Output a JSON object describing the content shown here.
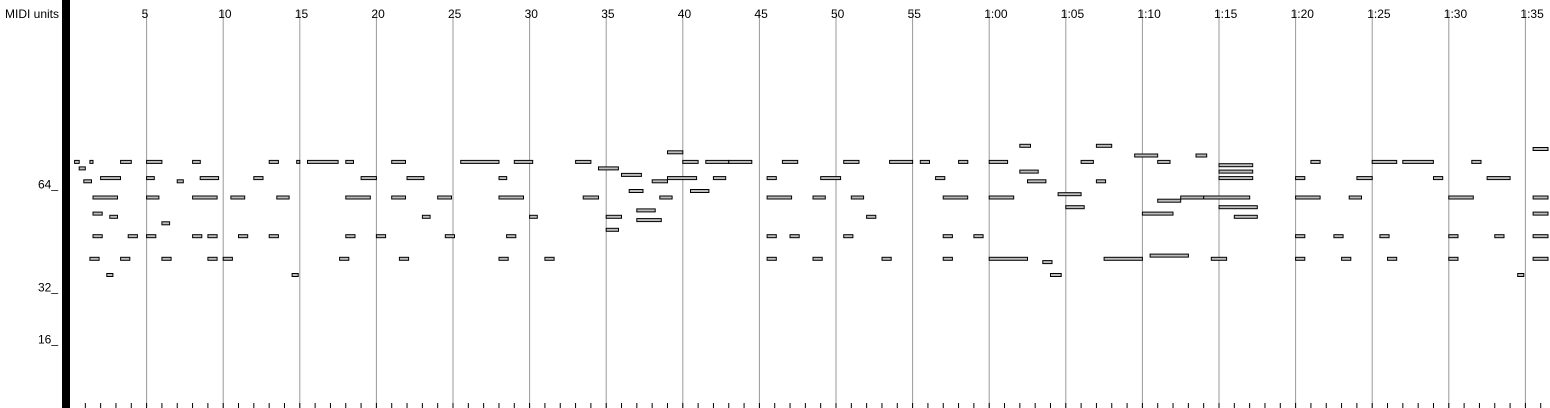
{
  "y_axis": {
    "unit_label": "MIDI units",
    "labels": [
      {
        "pitch": 64,
        "text": "64_"
      },
      {
        "pitch": 32,
        "text": "32_"
      },
      {
        "pitch": 16,
        "text": "16_"
      }
    ]
  },
  "x_axis": {
    "seconds_per_label": 5,
    "labels": [
      "5",
      "10",
      "15",
      "20",
      "25",
      "30",
      "35",
      "40",
      "45",
      "50",
      "55",
      "1:00",
      "1:05",
      "1:10",
      "1:15",
      "1:20",
      "1:25",
      "1:30",
      "1:35"
    ]
  },
  "chart_data": {
    "type": "scatter",
    "title": "",
    "xlabel": "",
    "ylabel": "MIDI units",
    "ylim": [
      0,
      128
    ],
    "xlim_seconds": [
      0,
      100
    ],
    "series": [
      {
        "values": [
          {
            "t": 0.3,
            "pitch": 72,
            "dur": 0.3
          },
          {
            "t": 0.6,
            "pitch": 70,
            "dur": 0.4
          },
          {
            "t": 0.9,
            "pitch": 66,
            "dur": 0.5
          },
          {
            "t": 1.3,
            "pitch": 72,
            "dur": 0.2
          },
          {
            "t": 1.5,
            "pitch": 61,
            "dur": 1.6
          },
          {
            "t": 1.5,
            "pitch": 56,
            "dur": 0.6
          },
          {
            "t": 1.5,
            "pitch": 49,
            "dur": 0.6
          },
          {
            "t": 1.3,
            "pitch": 42,
            "dur": 0.6
          },
          {
            "t": 2.0,
            "pitch": 67,
            "dur": 1.3
          },
          {
            "t": 2.6,
            "pitch": 55,
            "dur": 0.5
          },
          {
            "t": 2.4,
            "pitch": 37,
            "dur": 0.4
          },
          {
            "t": 3.3,
            "pitch": 72,
            "dur": 0.7
          },
          {
            "t": 3.8,
            "pitch": 49,
            "dur": 0.6
          },
          {
            "t": 3.3,
            "pitch": 42,
            "dur": 0.6
          },
          {
            "t": 5.0,
            "pitch": 72,
            "dur": 1.0
          },
          {
            "t": 5.0,
            "pitch": 67,
            "dur": 0.5
          },
          {
            "t": 5.0,
            "pitch": 61,
            "dur": 0.8
          },
          {
            "t": 5.0,
            "pitch": 49,
            "dur": 0.6
          },
          {
            "t": 6.0,
            "pitch": 42,
            "dur": 0.6
          },
          {
            "t": 6.0,
            "pitch": 53,
            "dur": 0.5
          },
          {
            "t": 7.0,
            "pitch": 66,
            "dur": 0.4
          },
          {
            "t": 8.0,
            "pitch": 72,
            "dur": 0.5
          },
          {
            "t": 8.0,
            "pitch": 61,
            "dur": 1.6
          },
          {
            "t": 8.0,
            "pitch": 49,
            "dur": 0.6
          },
          {
            "t": 8.5,
            "pitch": 67,
            "dur": 1.2
          },
          {
            "t": 9.0,
            "pitch": 42,
            "dur": 0.6
          },
          {
            "t": 9.0,
            "pitch": 49,
            "dur": 0.6
          },
          {
            "t": 10.0,
            "pitch": 42,
            "dur": 0.6
          },
          {
            "t": 10.5,
            "pitch": 61,
            "dur": 0.9
          },
          {
            "t": 11.0,
            "pitch": 49,
            "dur": 0.6
          },
          {
            "t": 12.0,
            "pitch": 67,
            "dur": 0.6
          },
          {
            "t": 13.0,
            "pitch": 72,
            "dur": 0.6
          },
          {
            "t": 13.0,
            "pitch": 49,
            "dur": 0.6
          },
          {
            "t": 13.5,
            "pitch": 61,
            "dur": 0.8
          },
          {
            "t": 14.5,
            "pitch": 37,
            "dur": 0.4
          },
          {
            "t": 14.8,
            "pitch": 72,
            "dur": 0.2
          },
          {
            "t": 15.5,
            "pitch": 72,
            "dur": 2.0
          },
          {
            "t": 18.0,
            "pitch": 72,
            "dur": 0.5
          },
          {
            "t": 18.0,
            "pitch": 61,
            "dur": 1.6
          },
          {
            "t": 18.0,
            "pitch": 49,
            "dur": 0.6
          },
          {
            "t": 17.6,
            "pitch": 42,
            "dur": 0.6
          },
          {
            "t": 19.0,
            "pitch": 67,
            "dur": 1.0
          },
          {
            "t": 20.0,
            "pitch": 49,
            "dur": 0.6
          },
          {
            "t": 21.0,
            "pitch": 72,
            "dur": 0.9
          },
          {
            "t": 21.0,
            "pitch": 61,
            "dur": 0.9
          },
          {
            "t": 21.5,
            "pitch": 42,
            "dur": 0.6
          },
          {
            "t": 22.0,
            "pitch": 67,
            "dur": 1.1
          },
          {
            "t": 23.0,
            "pitch": 55,
            "dur": 0.5
          },
          {
            "t": 24.0,
            "pitch": 61,
            "dur": 0.9
          },
          {
            "t": 24.5,
            "pitch": 49,
            "dur": 0.6
          },
          {
            "t": 25.5,
            "pitch": 72,
            "dur": 2.5
          },
          {
            "t": 28.0,
            "pitch": 67,
            "dur": 0.5
          },
          {
            "t": 28.0,
            "pitch": 61,
            "dur": 1.6
          },
          {
            "t": 28.5,
            "pitch": 49,
            "dur": 0.6
          },
          {
            "t": 28.0,
            "pitch": 42,
            "dur": 0.6
          },
          {
            "t": 29.0,
            "pitch": 72,
            "dur": 1.2
          },
          {
            "t": 30.0,
            "pitch": 55,
            "dur": 0.5
          },
          {
            "t": 31.0,
            "pitch": 42,
            "dur": 0.6
          },
          {
            "t": 33.0,
            "pitch": 72,
            "dur": 1.0
          },
          {
            "t": 33.5,
            "pitch": 61,
            "dur": 1.0
          },
          {
            "t": 34.5,
            "pitch": 70,
            "dur": 1.3
          },
          {
            "t": 35.0,
            "pitch": 55,
            "dur": 1.0
          },
          {
            "t": 35.0,
            "pitch": 51,
            "dur": 0.8
          },
          {
            "t": 36.0,
            "pitch": 68,
            "dur": 1.3
          },
          {
            "t": 36.5,
            "pitch": 63,
            "dur": 0.9
          },
          {
            "t": 37.0,
            "pitch": 57,
            "dur": 1.2
          },
          {
            "t": 37.0,
            "pitch": 54,
            "dur": 1.6
          },
          {
            "t": 38.0,
            "pitch": 66,
            "dur": 1.0
          },
          {
            "t": 38.5,
            "pitch": 61,
            "dur": 0.8
          },
          {
            "t": 39.0,
            "pitch": 75,
            "dur": 1.0
          },
          {
            "t": 39.0,
            "pitch": 67,
            "dur": 1.9
          },
          {
            "t": 40.0,
            "pitch": 72,
            "dur": 1.0
          },
          {
            "t": 40.5,
            "pitch": 63,
            "dur": 1.2
          },
          {
            "t": 41.5,
            "pitch": 72,
            "dur": 1.5
          },
          {
            "t": 42.0,
            "pitch": 67,
            "dur": 0.8
          },
          {
            "t": 43.0,
            "pitch": 72,
            "dur": 1.5
          },
          {
            "t": 45.5,
            "pitch": 67,
            "dur": 0.6
          },
          {
            "t": 45.5,
            "pitch": 61,
            "dur": 1.6
          },
          {
            "t": 45.5,
            "pitch": 49,
            "dur": 0.6
          },
          {
            "t": 45.5,
            "pitch": 42,
            "dur": 0.6
          },
          {
            "t": 46.5,
            "pitch": 72,
            "dur": 1.0
          },
          {
            "t": 47.0,
            "pitch": 49,
            "dur": 0.6
          },
          {
            "t": 48.5,
            "pitch": 61,
            "dur": 0.8
          },
          {
            "t": 48.5,
            "pitch": 42,
            "dur": 0.6
          },
          {
            "t": 49.0,
            "pitch": 67,
            "dur": 1.3
          },
          {
            "t": 50.5,
            "pitch": 49,
            "dur": 0.6
          },
          {
            "t": 50.5,
            "pitch": 72,
            "dur": 1.0
          },
          {
            "t": 51.0,
            "pitch": 61,
            "dur": 0.8
          },
          {
            "t": 52.0,
            "pitch": 55,
            "dur": 0.6
          },
          {
            "t": 53.0,
            "pitch": 42,
            "dur": 0.6
          },
          {
            "t": 53.5,
            "pitch": 72,
            "dur": 1.5
          },
          {
            "t": 55.5,
            "pitch": 72,
            "dur": 0.6
          },
          {
            "t": 56.5,
            "pitch": 67,
            "dur": 0.6
          },
          {
            "t": 57.0,
            "pitch": 61,
            "dur": 1.6
          },
          {
            "t": 57.0,
            "pitch": 49,
            "dur": 0.6
          },
          {
            "t": 57.0,
            "pitch": 42,
            "dur": 0.6
          },
          {
            "t": 58.0,
            "pitch": 72,
            "dur": 0.6
          },
          {
            "t": 59.0,
            "pitch": 49,
            "dur": 0.6
          },
          {
            "t": 60.0,
            "pitch": 72,
            "dur": 1.2
          },
          {
            "t": 60.0,
            "pitch": 61,
            "dur": 1.6
          },
          {
            "t": 60.0,
            "pitch": 42,
            "dur": 2.5
          },
          {
            "t": 62.0,
            "pitch": 77,
            "dur": 0.7
          },
          {
            "t": 62.0,
            "pitch": 69,
            "dur": 1.2
          },
          {
            "t": 62.5,
            "pitch": 66,
            "dur": 1.2
          },
          {
            "t": 63.5,
            "pitch": 41,
            "dur": 0.6
          },
          {
            "t": 64.0,
            "pitch": 37,
            "dur": 0.7
          },
          {
            "t": 64.5,
            "pitch": 62,
            "dur": 1.5
          },
          {
            "t": 65.0,
            "pitch": 58,
            "dur": 1.2
          },
          {
            "t": 66.0,
            "pitch": 72,
            "dur": 0.8
          },
          {
            "t": 67.0,
            "pitch": 77,
            "dur": 1.0
          },
          {
            "t": 67.0,
            "pitch": 66,
            "dur": 0.6
          },
          {
            "t": 67.5,
            "pitch": 42,
            "dur": 2.5
          },
          {
            "t": 69.5,
            "pitch": 74,
            "dur": 1.5
          },
          {
            "t": 70.0,
            "pitch": 56,
            "dur": 2.0
          },
          {
            "t": 71.0,
            "pitch": 72,
            "dur": 0.8
          },
          {
            "t": 71.0,
            "pitch": 60,
            "dur": 1.5
          },
          {
            "t": 70.5,
            "pitch": 43,
            "dur": 2.5
          },
          {
            "t": 72.5,
            "pitch": 61,
            "dur": 1.5
          },
          {
            "t": 73.5,
            "pitch": 74,
            "dur": 0.7
          },
          {
            "t": 74.5,
            "pitch": 42,
            "dur": 1.0
          },
          {
            "t": 75.0,
            "pitch": 71,
            "dur": 2.2
          },
          {
            "t": 75.0,
            "pitch": 69,
            "dur": 2.2
          },
          {
            "t": 75.0,
            "pitch": 67,
            "dur": 2.2
          },
          {
            "t": 74.0,
            "pitch": 61,
            "dur": 3.0
          },
          {
            "t": 75.0,
            "pitch": 58,
            "dur": 2.5
          },
          {
            "t": 76.0,
            "pitch": 55,
            "dur": 1.5
          },
          {
            "t": 80.0,
            "pitch": 67,
            "dur": 0.6
          },
          {
            "t": 80.0,
            "pitch": 61,
            "dur": 1.6
          },
          {
            "t": 80.0,
            "pitch": 49,
            "dur": 0.6
          },
          {
            "t": 80.0,
            "pitch": 42,
            "dur": 0.6
          },
          {
            "t": 81.0,
            "pitch": 72,
            "dur": 0.6
          },
          {
            "t": 82.5,
            "pitch": 49,
            "dur": 0.6
          },
          {
            "t": 83.0,
            "pitch": 42,
            "dur": 0.6
          },
          {
            "t": 83.5,
            "pitch": 61,
            "dur": 0.8
          },
          {
            "t": 84.0,
            "pitch": 67,
            "dur": 1.0
          },
          {
            "t": 85.0,
            "pitch": 72,
            "dur": 1.6
          },
          {
            "t": 85.5,
            "pitch": 49,
            "dur": 0.6
          },
          {
            "t": 86.0,
            "pitch": 42,
            "dur": 0.6
          },
          {
            "t": 87.0,
            "pitch": 72,
            "dur": 2.0
          },
          {
            "t": 89.0,
            "pitch": 67,
            "dur": 0.6
          },
          {
            "t": 90.0,
            "pitch": 61,
            "dur": 1.6
          },
          {
            "t": 90.0,
            "pitch": 49,
            "dur": 0.6
          },
          {
            "t": 90.0,
            "pitch": 42,
            "dur": 0.6
          },
          {
            "t": 91.5,
            "pitch": 72,
            "dur": 0.6
          },
          {
            "t": 92.5,
            "pitch": 67,
            "dur": 1.5
          },
          {
            "t": 93.0,
            "pitch": 49,
            "dur": 0.6
          },
          {
            "t": 95.5,
            "pitch": 76,
            "dur": 3.3
          },
          {
            "t": 95.5,
            "pitch": 61,
            "dur": 3.3
          },
          {
            "t": 95.5,
            "pitch": 56,
            "dur": 3.3
          },
          {
            "t": 95.5,
            "pitch": 49,
            "dur": 3.3
          },
          {
            "t": 95.5,
            "pitch": 42,
            "dur": 3.3
          },
          {
            "t": 94.5,
            "pitch": 37,
            "dur": 0.4
          }
        ]
      }
    ],
    "grid": true
  }
}
